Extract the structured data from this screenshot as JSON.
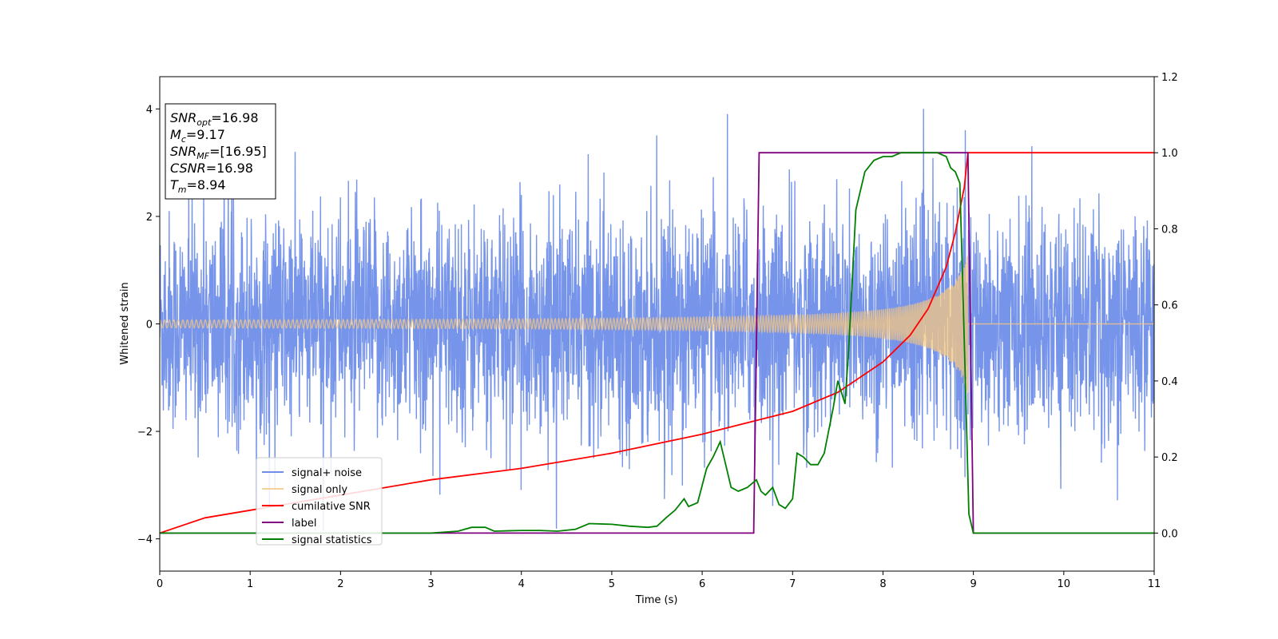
{
  "chart_data": {
    "type": "line",
    "xlabel": "Time (s)",
    "ylabel_left": "Whitened strain",
    "ylabel_right": "",
    "xlim": [
      0,
      11
    ],
    "ylim_left": [
      -4.6,
      4.6
    ],
    "ylim_right": [
      -0.1,
      1.2
    ],
    "x_ticks": [
      0,
      1,
      2,
      3,
      4,
      5,
      6,
      7,
      8,
      9,
      10,
      11
    ],
    "y_ticks_left": [
      -4,
      -2,
      0,
      2,
      4
    ],
    "y_ticks_right": [
      0.0,
      0.2,
      0.4,
      0.6,
      0.8,
      1.0,
      1.2
    ],
    "y_tick_labels_right": [
      "0.0",
      "0.2",
      "0.4",
      "0.6",
      "0.8",
      "1.0",
      "1.2"
    ],
    "grid": false,
    "legend_position": "lower left",
    "info_box": {
      "lines": [
        {
          "var": "SNR",
          "sub": "opt",
          "value": "=16.98"
        },
        {
          "var": "M",
          "sub": "c",
          "value": "=9.17"
        },
        {
          "var": "SNR",
          "sub": "MF",
          "value": "=[16.95]"
        },
        {
          "var": "CSNR",
          "sub": "",
          "value": "=16.98"
        },
        {
          "var": "T",
          "sub": "m",
          "value": "=8.94"
        }
      ]
    },
    "series": [
      {
        "name": "signal+ noise",
        "axis": "left",
        "color": "#6f8ee8",
        "kind": "noise",
        "noise_std": 1.0,
        "signal_end": 8.94
      },
      {
        "name": "signal only",
        "axis": "left",
        "color": "#f5c780",
        "kind": "chirp",
        "start_amplitude": 0.05,
        "end_amplitude": 1.3,
        "merger_time": 8.94
      },
      {
        "name": "cumilative SNR",
        "axis": "right",
        "color": "#ff0000",
        "x": [
          0,
          0.5,
          1,
          2,
          3,
          4,
          5,
          6,
          6.5,
          7,
          7.5,
          8,
          8.3,
          8.5,
          8.7,
          8.8,
          8.9,
          8.94,
          9,
          10,
          11
        ],
        "y": [
          0.0,
          0.04,
          0.06,
          0.1,
          0.14,
          0.17,
          0.21,
          0.26,
          0.29,
          0.32,
          0.37,
          0.45,
          0.52,
          0.59,
          0.7,
          0.79,
          0.91,
          1.0,
          1.0,
          1.0,
          1.0
        ]
      },
      {
        "name": "label",
        "axis": "right",
        "color": "#800080",
        "x": [
          0,
          6.57,
          6.63,
          8.94,
          9.0,
          11
        ],
        "y": [
          0,
          0,
          1,
          1,
          0,
          0
        ]
      },
      {
        "name": "signal statistics",
        "axis": "right",
        "color": "#008000",
        "x": [
          0,
          1,
          2,
          3,
          3.3,
          3.45,
          3.6,
          3.7,
          4,
          4.2,
          4.4,
          4.6,
          4.75,
          5,
          5.2,
          5.4,
          5.5,
          5.6,
          5.7,
          5.8,
          5.85,
          5.95,
          6.05,
          6.12,
          6.2,
          6.25,
          6.32,
          6.4,
          6.5,
          6.6,
          6.65,
          6.7,
          6.78,
          6.85,
          6.92,
          7.0,
          7.05,
          7.12,
          7.2,
          7.28,
          7.35,
          7.45,
          7.5,
          7.58,
          7.62,
          7.7,
          7.8,
          7.9,
          8.0,
          8.1,
          8.2,
          8.4,
          8.6,
          8.7,
          8.75,
          8.8,
          8.85,
          8.9,
          8.95,
          9.0,
          10,
          11
        ],
        "y": [
          0.0,
          0.0,
          0.0,
          0.0,
          0.005,
          0.015,
          0.015,
          0.005,
          0.007,
          0.007,
          0.005,
          0.01,
          0.025,
          0.023,
          0.018,
          0.015,
          0.018,
          0.04,
          0.06,
          0.09,
          0.07,
          0.08,
          0.17,
          0.2,
          0.24,
          0.19,
          0.12,
          0.11,
          0.12,
          0.14,
          0.11,
          0.1,
          0.12,
          0.075,
          0.065,
          0.09,
          0.21,
          0.2,
          0.18,
          0.18,
          0.21,
          0.33,
          0.4,
          0.34,
          0.48,
          0.85,
          0.95,
          0.98,
          0.99,
          0.99,
          1.0,
          1.0,
          1.0,
          0.99,
          0.96,
          0.95,
          0.92,
          0.5,
          0.05,
          0.0,
          0.0,
          0.0
        ]
      }
    ]
  }
}
